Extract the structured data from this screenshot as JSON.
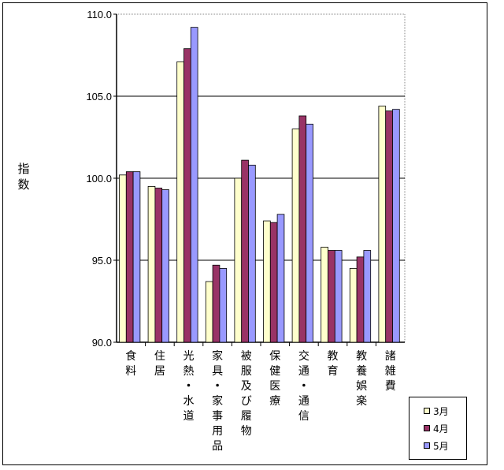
{
  "chart_data": {
    "type": "bar",
    "title": "",
    "xlabel": "",
    "ylabel": "指数",
    "ylim": [
      90,
      110
    ],
    "yticks": [
      "90.0",
      "95.0",
      "100.0",
      "105.0",
      "110.0"
    ],
    "ytick_values": [
      90,
      95,
      100,
      105,
      110
    ],
    "grid": "horizontal lines at 95.0, 100.0, 105.0",
    "legend_position": "bottom-right",
    "categories": [
      "食料",
      "住居",
      "光熱・水道",
      "家具・家事用品",
      "被服及び履物",
      "保健医療",
      "交通・通信",
      "教育",
      "教養娯楽",
      "諸雑費"
    ],
    "series": [
      {
        "name": "3月",
        "color": "#FFFFCC",
        "values": [
          100.2,
          99.5,
          107.1,
          93.7,
          100.0,
          97.4,
          103.0,
          95.8,
          94.5,
          104.4
        ]
      },
      {
        "name": "4月",
        "color": "#993366",
        "values": [
          100.4,
          99.4,
          107.9,
          94.7,
          101.1,
          97.3,
          103.8,
          95.6,
          95.2,
          104.1
        ]
      },
      {
        "name": "5月",
        "color": "#9999FF",
        "values": [
          100.4,
          99.3,
          109.2,
          94.5,
          100.8,
          97.8,
          103.3,
          95.6,
          95.6,
          104.2
        ]
      }
    ]
  }
}
